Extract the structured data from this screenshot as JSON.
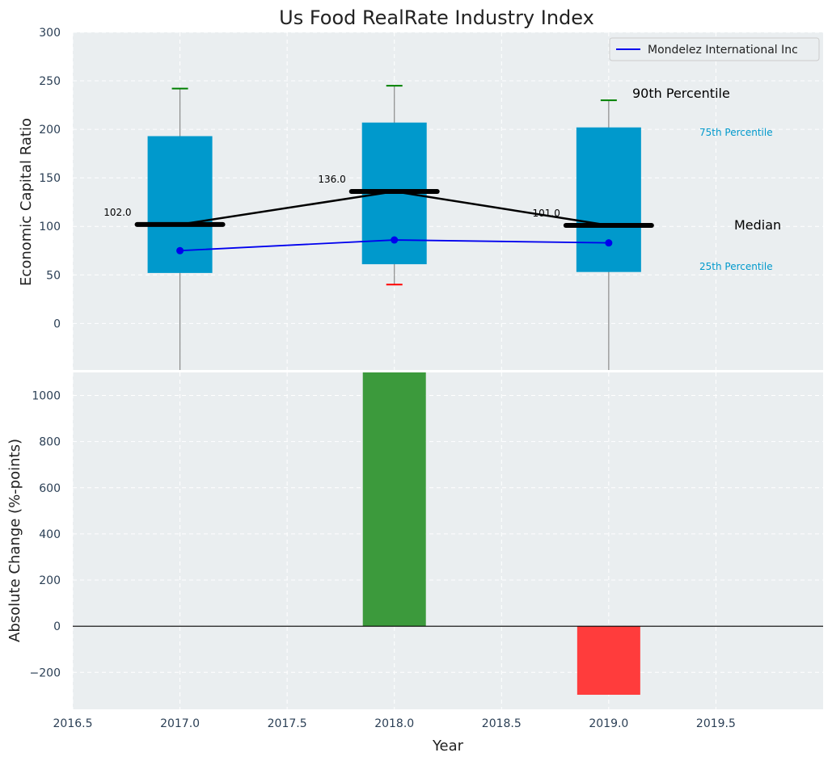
{
  "chart_data": [
    {
      "type": "box",
      "title": "Us Food RealRate Industry Index",
      "xlabel": "",
      "ylabel": "Economic Capital Ratio",
      "xlim": [
        2016.5,
        2020.0
      ],
      "ylim": [
        -48,
        300
      ],
      "yticks": [
        0,
        50,
        100,
        150,
        200,
        250,
        300
      ],
      "grid": true,
      "boxes": [
        {
          "x": 2017,
          "q1": 52,
          "median": 102,
          "q3": 193,
          "p10": -48,
          "p90": 242,
          "median_label": "102.0"
        },
        {
          "x": 2018,
          "q1": 61,
          "median": 136,
          "q3": 207,
          "p10": 40,
          "p90": 245,
          "median_label": "136.0"
        },
        {
          "x": 2019,
          "q1": 53,
          "median": 101,
          "q3": 202,
          "p10": -48,
          "p90": 230,
          "median_label": "101.0"
        }
      ],
      "median_line": {
        "x": [
          2017,
          2018,
          2019
        ],
        "values": [
          102,
          136,
          101
        ]
      },
      "series": [
        {
          "name": "Mondelez International Inc",
          "x": [
            2017,
            2018,
            2019
          ],
          "values": [
            75,
            86,
            83
          ],
          "color": "#0000ee"
        }
      ],
      "legend_position": "top-right",
      "annotations": {
        "p90": "90th Percentile",
        "p75": "75th Percentile",
        "median": "Median",
        "p25": "25th Percentile"
      },
      "colors": {
        "box": "#0099cc",
        "whisker_top": "#008000",
        "whisker_bottom": "#ff0000",
        "median": "#000000"
      }
    },
    {
      "type": "bar",
      "xlabel": "Year",
      "ylabel": "Absolute Change (%-points)",
      "xlim": [
        2016.5,
        2020.0
      ],
      "ylim": [
        -360,
        1100
      ],
      "yticks": [
        -200,
        0,
        200,
        400,
        600,
        800,
        1000
      ],
      "xticks": [
        2016.5,
        2017.0,
        2017.5,
        2018.0,
        2018.5,
        2019.0,
        2019.5
      ],
      "x": [
        2018,
        2019
      ],
      "values": [
        1100,
        -297
      ],
      "colors": {
        "positive": "#3c9a3c",
        "negative": "#ff3c3c"
      },
      "grid": true
    }
  ]
}
